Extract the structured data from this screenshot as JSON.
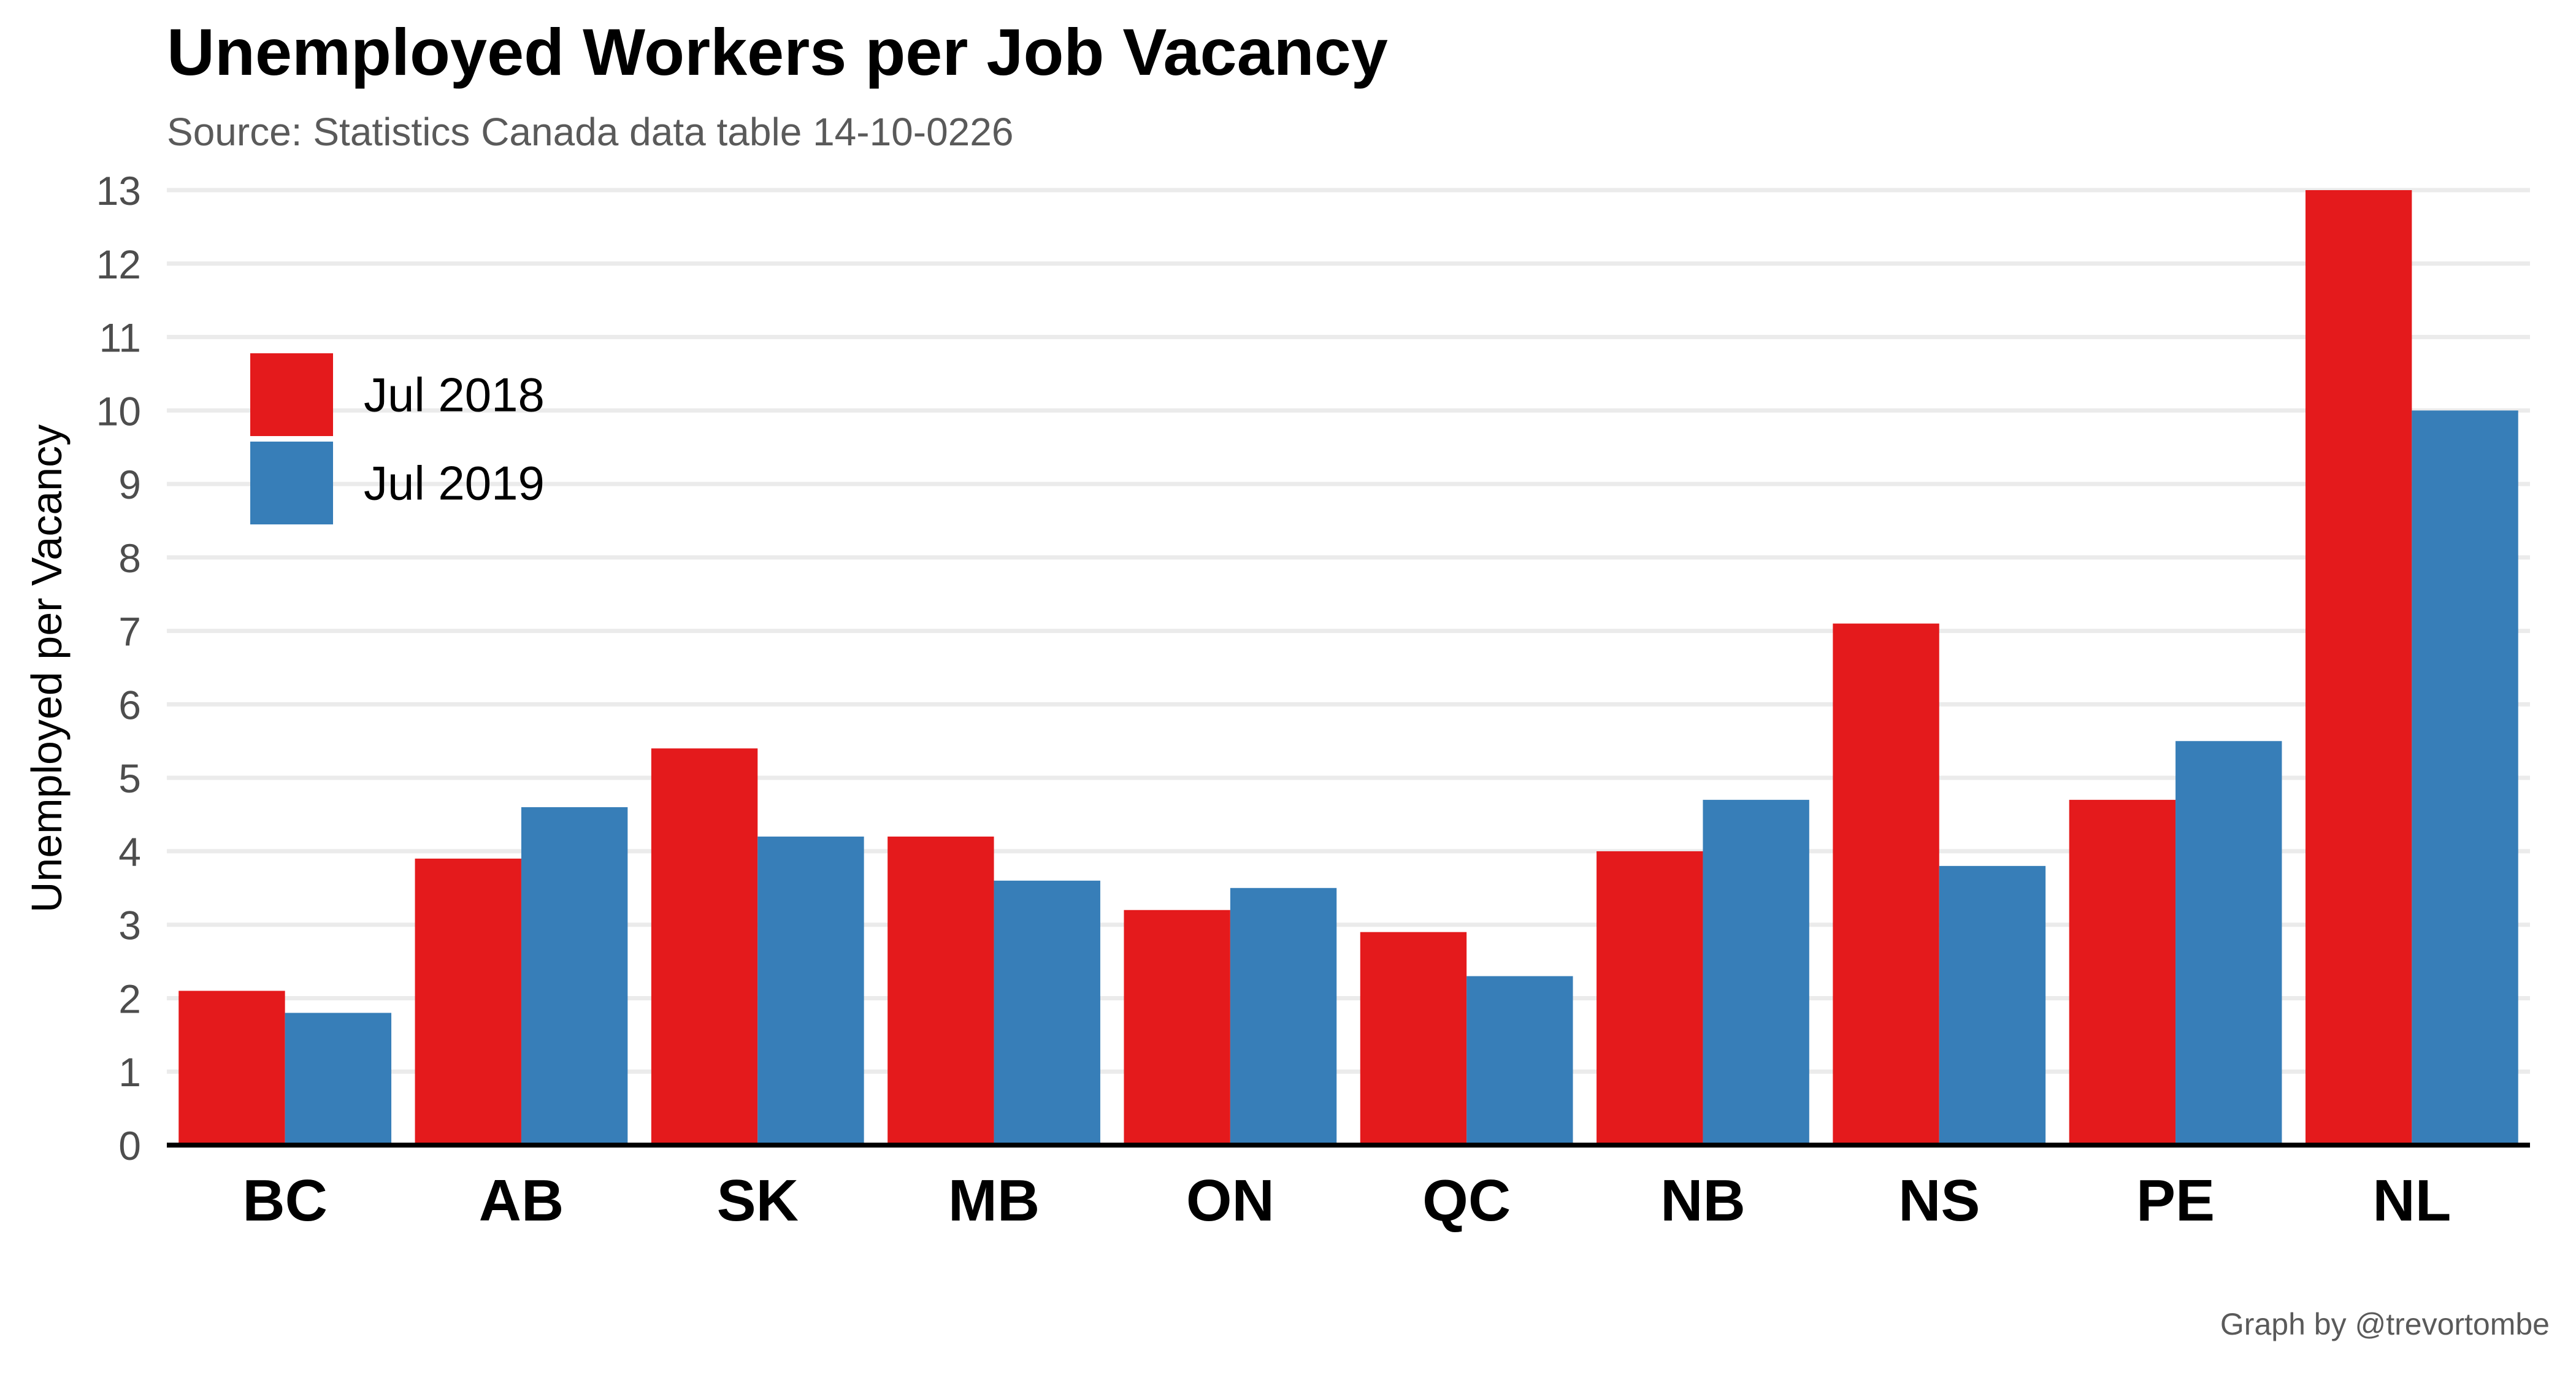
{
  "chart_data": {
    "type": "bar",
    "title": "Unemployed Workers per Job Vacancy",
    "subtitle": "Source: Statistics Canada data table 14-10-0226",
    "caption": "Graph by @trevortombe",
    "xlabel": "",
    "ylabel": "Unemployed per Vacancy",
    "ylim": [
      0,
      13
    ],
    "yticks": [
      "0",
      "1",
      "2",
      "3",
      "4",
      "5",
      "6",
      "7",
      "8",
      "9",
      "10",
      "11",
      "12",
      "13"
    ],
    "categories": [
      "BC",
      "AB",
      "SK",
      "MB",
      "ON",
      "QC",
      "NB",
      "NS",
      "PE",
      "NL"
    ],
    "series": [
      {
        "name": "Jul 2018",
        "values": [
          2.1,
          3.9,
          5.4,
          4.2,
          3.2,
          2.9,
          4.0,
          7.1,
          4.7,
          13.0
        ]
      },
      {
        "name": "Jul 2019",
        "values": [
          1.8,
          4.6,
          4.2,
          3.6,
          3.5,
          2.3,
          4.7,
          3.8,
          5.5,
          10.0
        ]
      }
    ],
    "grid": true,
    "legend_position": "top-left"
  },
  "colors": {
    "series": [
      "#e41a1c",
      "#377eb8"
    ],
    "grid": "#ebebeb",
    "axis": "#000000",
    "tick_text": "#4d4d4d"
  }
}
